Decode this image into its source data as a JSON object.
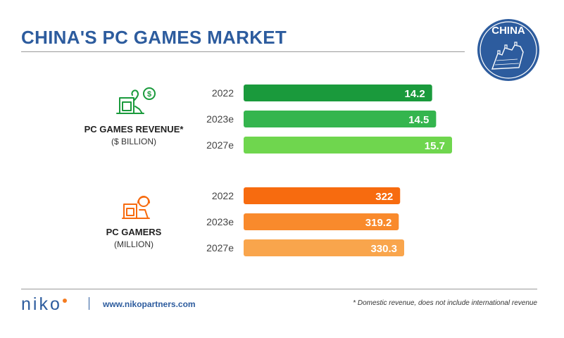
{
  "title": "CHINA'S PC GAMES MARKET",
  "badge_text": "CHINA",
  "chart_data": [
    {
      "type": "bar",
      "orientation": "horizontal",
      "title": "PC GAMES REVENUE*",
      "subtitle": "($ BILLION)",
      "categories": [
        "2022",
        "2023e",
        "2027e"
      ],
      "values": [
        14.2,
        14.5,
        15.7
      ],
      "value_labels": [
        "14.2",
        "14.5",
        "15.7"
      ],
      "colors": [
        "#1a9a3c",
        "#34b54e",
        "#6fd64e"
      ],
      "icon": "money-bag-icon"
    },
    {
      "type": "bar",
      "orientation": "horizontal",
      "title": "PC GAMERS",
      "subtitle": "(MILLION)",
      "categories": [
        "2022",
        "2023e",
        "2027e"
      ],
      "values": [
        322,
        319.2,
        330.3
      ],
      "value_labels": [
        "322",
        "319.2",
        "330.3"
      ],
      "colors": [
        "#f76b0f",
        "#f98a2c",
        "#f9a54c"
      ],
      "icon": "gamer-icon"
    }
  ],
  "footer": {
    "logo_text": "niko",
    "website": "www.nikopartners.com",
    "footnote": "* Domestic revenue, does not include international revenue"
  }
}
